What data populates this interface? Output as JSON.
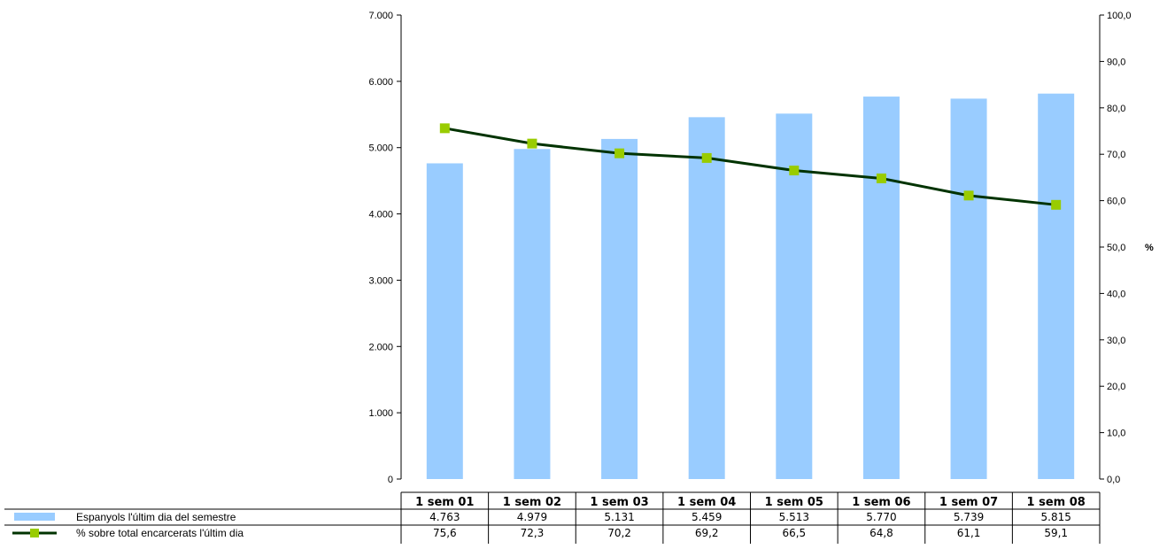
{
  "chart_data": {
    "type": "bar",
    "categories": [
      "1 sem 01",
      "1 sem 02",
      "1 sem 03",
      "1 sem 04",
      "1 sem 05",
      "1 sem 06",
      "1 sem 07",
      "1 sem 08"
    ],
    "series": [
      {
        "name": "Espanyols l'últim dia del semestre",
        "type": "bar",
        "axis": "left",
        "values": [
          4763,
          4979,
          5131,
          5459,
          5513,
          5770,
          5739,
          5815
        ],
        "labels": [
          "4.763",
          "4.979",
          "5.131",
          "5.459",
          "5.513",
          "5.770",
          "5.739",
          "5.815"
        ],
        "color": "#99ccff"
      },
      {
        "name": "% sobre total encarcerats l'últim dia",
        "type": "line",
        "axis": "right",
        "values": [
          75.6,
          72.3,
          70.2,
          69.2,
          66.5,
          64.8,
          61.1,
          59.1
        ],
        "labels": [
          "75,6",
          "72,3",
          "70,2",
          "69,2",
          "66,5",
          "64,8",
          "61,1",
          "59,1"
        ],
        "line_color": "#003300",
        "marker_color": "#99cc00"
      }
    ],
    "y_left": {
      "range": [
        0,
        7000
      ],
      "ticks": [
        0,
        1000,
        2000,
        3000,
        4000,
        5000,
        6000,
        7000
      ],
      "tick_labels": [
        "0",
        "1.000",
        "2.000",
        "3.000",
        "4.000",
        "5.000",
        "6.000",
        "7.000"
      ]
    },
    "y_right": {
      "label": "%",
      "range": [
        0,
        100
      ],
      "ticks": [
        0,
        10,
        20,
        30,
        40,
        50,
        60,
        70,
        80,
        90,
        100
      ],
      "tick_labels": [
        "0,0",
        "10,0",
        "20,0",
        "30,0",
        "40,0",
        "50,0",
        "60,0",
        "70,0",
        "80,0",
        "90,0",
        "100,0"
      ]
    },
    "grid": false,
    "legend": "bottom-left data table"
  }
}
